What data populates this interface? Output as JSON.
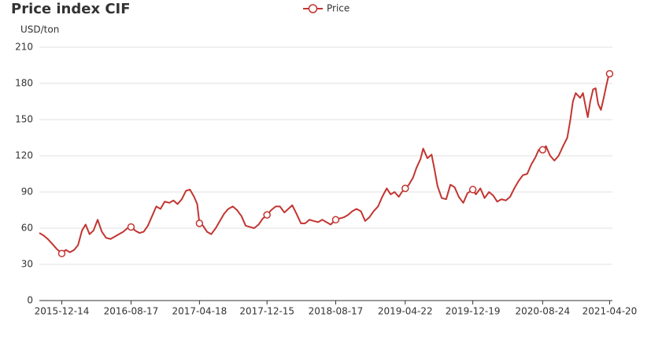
{
  "chart_data": {
    "type": "line",
    "title": "Price index CIF",
    "y_label": "USD/ton",
    "x": [
      "2015-09-25",
      "2015-10-10",
      "2015-10-25",
      "2015-11-10",
      "2015-11-25",
      "2015-12-14",
      "2015-12-28",
      "2016-01-12",
      "2016-01-27",
      "2016-02-10",
      "2016-02-24",
      "2016-03-08",
      "2016-03-22",
      "2016-04-05",
      "2016-04-20",
      "2016-05-05",
      "2016-05-20",
      "2016-06-05",
      "2016-06-20",
      "2016-07-05",
      "2016-07-20",
      "2016-08-04",
      "2016-08-17",
      "2016-09-01",
      "2016-09-16",
      "2016-10-01",
      "2016-10-16",
      "2016-10-31",
      "2016-11-15",
      "2016-11-30",
      "2016-12-15",
      "2017-01-01",
      "2017-01-15",
      "2017-01-30",
      "2017-02-14",
      "2017-03-01",
      "2017-03-15",
      "2017-03-30",
      "2017-04-10",
      "2017-04-18",
      "2017-05-01",
      "2017-05-15",
      "2017-05-30",
      "2017-06-15",
      "2017-06-30",
      "2017-07-15",
      "2017-07-30",
      "2017-08-15",
      "2017-08-30",
      "2017-09-15",
      "2017-09-30",
      "2017-10-15",
      "2017-10-30",
      "2017-11-15",
      "2017-11-30",
      "2017-12-15",
      "2017-12-30",
      "2018-01-15",
      "2018-01-30",
      "2018-02-15",
      "2018-03-01",
      "2018-03-15",
      "2018-03-30",
      "2018-04-15",
      "2018-04-30",
      "2018-05-15",
      "2018-05-30",
      "2018-06-15",
      "2018-06-30",
      "2018-07-15",
      "2018-07-30",
      "2018-08-17",
      "2018-08-30",
      "2018-09-15",
      "2018-09-30",
      "2018-10-15",
      "2018-10-30",
      "2018-11-15",
      "2018-11-30",
      "2018-12-15",
      "2018-12-30",
      "2019-01-15",
      "2019-01-30",
      "2019-02-15",
      "2019-03-01",
      "2019-03-15",
      "2019-03-30",
      "2019-04-10",
      "2019-04-22",
      "2019-05-05",
      "2019-05-20",
      "2019-06-01",
      "2019-06-15",
      "2019-06-25",
      "2019-07-10",
      "2019-07-25",
      "2019-08-05",
      "2019-08-15",
      "2019-08-30",
      "2019-09-15",
      "2019-09-30",
      "2019-10-15",
      "2019-10-30",
      "2019-11-15",
      "2019-11-30",
      "2019-12-19",
      "2019-12-30",
      "2020-01-15",
      "2020-01-30",
      "2020-02-15",
      "2020-03-01",
      "2020-03-15",
      "2020-03-30",
      "2020-04-15",
      "2020-04-30",
      "2020-05-15",
      "2020-05-30",
      "2020-06-15",
      "2020-06-30",
      "2020-07-15",
      "2020-07-30",
      "2020-08-10",
      "2020-08-24",
      "2020-09-05",
      "2020-09-20",
      "2020-10-05",
      "2020-10-20",
      "2020-11-05",
      "2020-11-20",
      "2020-12-01",
      "2020-12-10",
      "2020-12-20",
      "2021-01-05",
      "2021-01-15",
      "2021-01-25",
      "2021-02-01",
      "2021-02-10",
      "2021-02-20",
      "2021-03-01",
      "2021-03-10",
      "2021-03-20",
      "2021-03-30",
      "2021-04-08",
      "2021-04-15",
      "2021-04-20"
    ],
    "series": [
      {
        "name": "Price",
        "color": "#c23531",
        "values": [
          56,
          54,
          51,
          47,
          43,
          39,
          42,
          40,
          42,
          46,
          58,
          63,
          55,
          58,
          67,
          57,
          52,
          51,
          53,
          55,
          57,
          60,
          61,
          58,
          56,
          57,
          62,
          70,
          78,
          76,
          82,
          81,
          83,
          80,
          84,
          91,
          92,
          86,
          80,
          64,
          62,
          57,
          55,
          60,
          66,
          72,
          76,
          78,
          75,
          70,
          62,
          61,
          60,
          63,
          68,
          71,
          75,
          78,
          78,
          73,
          76,
          79,
          72,
          64,
          64,
          67,
          66,
          65,
          67,
          65,
          63,
          67,
          68,
          69,
          71,
          74,
          76,
          74,
          66,
          69,
          74,
          78,
          86,
          93,
          88,
          90,
          86,
          90,
          93,
          96,
          102,
          110,
          117,
          126,
          118,
          121,
          108,
          95,
          85,
          84,
          96,
          94,
          86,
          81,
          89,
          92,
          88,
          93,
          85,
          90,
          87,
          82,
          84,
          83,
          86,
          93,
          99,
          104,
          105,
          113,
          119,
          125,
          125,
          128,
          120,
          116,
          120,
          128,
          135,
          150,
          165,
          172,
          168,
          172,
          160,
          152,
          165,
          175,
          176,
          163,
          158,
          168,
          178,
          185,
          188
        ]
      }
    ],
    "xlim": [
      "2015-09-25",
      "2021-04-30"
    ],
    "xticks": [
      "2015-12-14",
      "2016-08-17",
      "2017-04-18",
      "2017-12-15",
      "2018-08-17",
      "2019-04-22",
      "2019-12-19",
      "2020-08-24",
      "2021-04-20"
    ],
    "ylim": [
      0,
      210
    ],
    "yticks": [
      0,
      30,
      60,
      90,
      120,
      150,
      180,
      210
    ],
    "grid": true,
    "legend": "top"
  }
}
